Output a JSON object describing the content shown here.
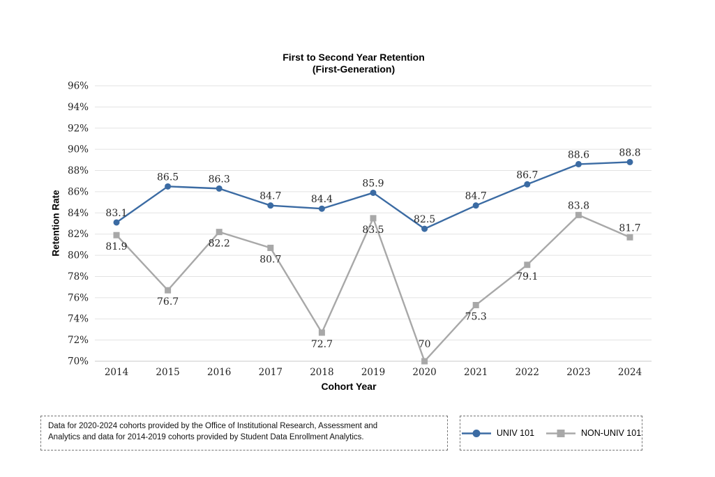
{
  "chart_data": {
    "type": "line",
    "title": "First to Second Year Retention (First-Generation)",
    "title_lines": [
      "First to Second Year Retention",
      "(First-Generation)"
    ],
    "xlabel": "Cohort Year",
    "ylabel": "Retention Rate",
    "ylim": [
      70,
      96
    ],
    "y_tick_step": 2,
    "y_tick_suffix": "%",
    "grid": true,
    "legend_position": "bottom-right-box",
    "categories": [
      "2014",
      "2015",
      "2016",
      "2017",
      "2018",
      "2019",
      "2020",
      "2021",
      "2022",
      "2023",
      "2024"
    ],
    "series": [
      {
        "name": "UNIV 101",
        "color": "#3b6ba3",
        "marker": "circle",
        "values": [
          83.1,
          86.5,
          86.3,
          84.7,
          84.4,
          85.9,
          82.5,
          84.7,
          86.7,
          88.6,
          88.8
        ],
        "label_positions": [
          "above",
          "above",
          "above",
          "above",
          "above",
          "above",
          "above",
          "above",
          "above",
          "above",
          "above"
        ],
        "label_dy_extra": [
          0,
          0,
          0,
          0,
          0,
          0,
          0,
          0,
          0,
          0,
          0
        ]
      },
      {
        "name": "NON-UNIV 101",
        "color": "#a8a8a8",
        "marker": "square",
        "values": [
          81.9,
          76.7,
          82.2,
          80.7,
          72.7,
          83.5,
          70,
          75.3,
          79.1,
          83.8,
          81.7
        ],
        "label_positions": [
          "below",
          "below",
          "below",
          "below",
          "below",
          "below",
          "above",
          "below",
          "below",
          "above",
          "above"
        ],
        "label_dy_extra": [
          0,
          0,
          0,
          0,
          0,
          0,
          -11,
          0,
          0,
          0,
          0
        ]
      }
    ]
  },
  "footnote": {
    "lines": [
      "Data for 2020-2024 cohorts provided by the Office of Institutional Research, Assessment and",
      "Analytics and data for 2014-2019 cohorts provided by Student Data Enrollment Analytics."
    ]
  },
  "colors": {
    "grid": "#e2e2e2",
    "axis": "#c9c9c9",
    "accent_blue": "#3b6ba3",
    "accent_gray": "#a8a8a8"
  }
}
